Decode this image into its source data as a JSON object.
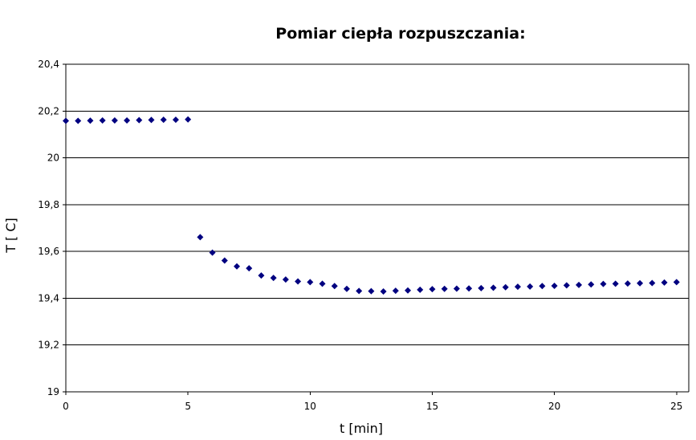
{
  "chart_data": {
    "type": "scatter",
    "title": "Pomiar ciepła rozpuszczania:",
    "xlabel": "t [min]",
    "ylabel": "T [ C]",
    "xlim": [
      0,
      25.5
    ],
    "ylim": [
      19.0,
      20.4
    ],
    "xticks": [
      0,
      5,
      10,
      15,
      20,
      25
    ],
    "xtick_labels": [
      "0",
      "5",
      "10",
      "15",
      "20",
      "25"
    ],
    "yticks": [
      19.0,
      19.2,
      19.4,
      19.6,
      19.8,
      20.0,
      20.2,
      20.4
    ],
    "ytick_labels": [
      "19",
      "19,2",
      "19,4",
      "19,6",
      "19,8",
      "20",
      "20,2",
      "20,4"
    ],
    "grid": "horizontal",
    "marker_color": "#000080",
    "points": [
      [
        0,
        20.158
      ],
      [
        0.5,
        20.158
      ],
      [
        1,
        20.159
      ],
      [
        1.5,
        20.16
      ],
      [
        2,
        20.16
      ],
      [
        2.5,
        20.16
      ],
      [
        3,
        20.161
      ],
      [
        3.5,
        20.162
      ],
      [
        4,
        20.163
      ],
      [
        4.5,
        20.163
      ],
      [
        5,
        20.164
      ],
      [
        5.5,
        19.661
      ],
      [
        6,
        19.595
      ],
      [
        6.5,
        19.561
      ],
      [
        7,
        19.536
      ],
      [
        7.5,
        19.528
      ],
      [
        8,
        19.497
      ],
      [
        8.5,
        19.487
      ],
      [
        9,
        19.48
      ],
      [
        9.5,
        19.472
      ],
      [
        10,
        19.469
      ],
      [
        10.5,
        19.462
      ],
      [
        11,
        19.452
      ],
      [
        11.5,
        19.44
      ],
      [
        12,
        19.431
      ],
      [
        12.5,
        19.43
      ],
      [
        13,
        19.429
      ],
      [
        13.5,
        19.432
      ],
      [
        14,
        19.433
      ],
      [
        14.5,
        19.436
      ],
      [
        15,
        19.439
      ],
      [
        15.5,
        19.44
      ],
      [
        16,
        19.441
      ],
      [
        16.5,
        19.442
      ],
      [
        17,
        19.443
      ],
      [
        17.5,
        19.445
      ],
      [
        18,
        19.447
      ],
      [
        18.5,
        19.449
      ],
      [
        19,
        19.45
      ],
      [
        19.5,
        19.452
      ],
      [
        20,
        19.453
      ],
      [
        20.5,
        19.455
      ],
      [
        21,
        19.457
      ],
      [
        21.5,
        19.459
      ],
      [
        22,
        19.461
      ],
      [
        22.5,
        19.462
      ],
      [
        23,
        19.463
      ],
      [
        23.5,
        19.464
      ],
      [
        24,
        19.465
      ],
      [
        24.5,
        19.467
      ],
      [
        25,
        19.469
      ]
    ]
  }
}
